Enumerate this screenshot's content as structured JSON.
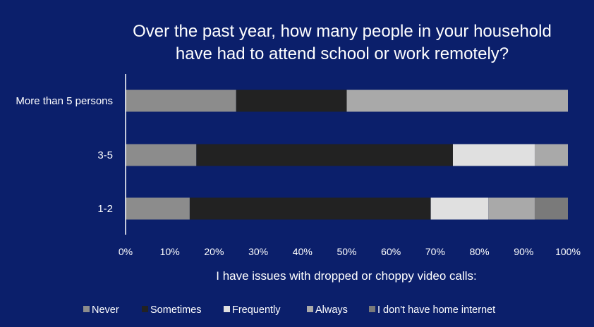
{
  "chart_data": {
    "type": "bar",
    "orientation": "horizontal",
    "stacked": true,
    "title": "Over the past year, how many people in your household have had to attend school or work remotely?",
    "title_lines": [
      "Over the past year, how many people in your household",
      "have had to attend school or work remotely?"
    ],
    "xlabel": "I have issues with dropped or choppy video calls:",
    "ylabel": "",
    "categories": [
      "More than 5 persons",
      "3-5",
      "1-2"
    ],
    "xlim": [
      0,
      100
    ],
    "x_ticks": [
      "0%",
      "10%",
      "20%",
      "30%",
      "40%",
      "50%",
      "60%",
      "70%",
      "80%",
      "90%",
      "100%"
    ],
    "grid": false,
    "legend_position": "bottom",
    "series": [
      {
        "name": "Never",
        "color": "#8c8c8c",
        "values": [
          25,
          16,
          14.5
        ]
      },
      {
        "name": "Sometimes",
        "color": "#222222",
        "values": [
          25,
          58,
          54.5
        ]
      },
      {
        "name": "Frequently",
        "color": "#e0e0e0",
        "values": [
          0,
          18.5,
          13
        ]
      },
      {
        "name": "Always",
        "color": "#a9a9a9",
        "values": [
          50,
          7.5,
          10.5
        ]
      },
      {
        "name": "I don't have home internet",
        "color": "#7a7a7a",
        "values": [
          0,
          0,
          7.5
        ]
      }
    ]
  }
}
